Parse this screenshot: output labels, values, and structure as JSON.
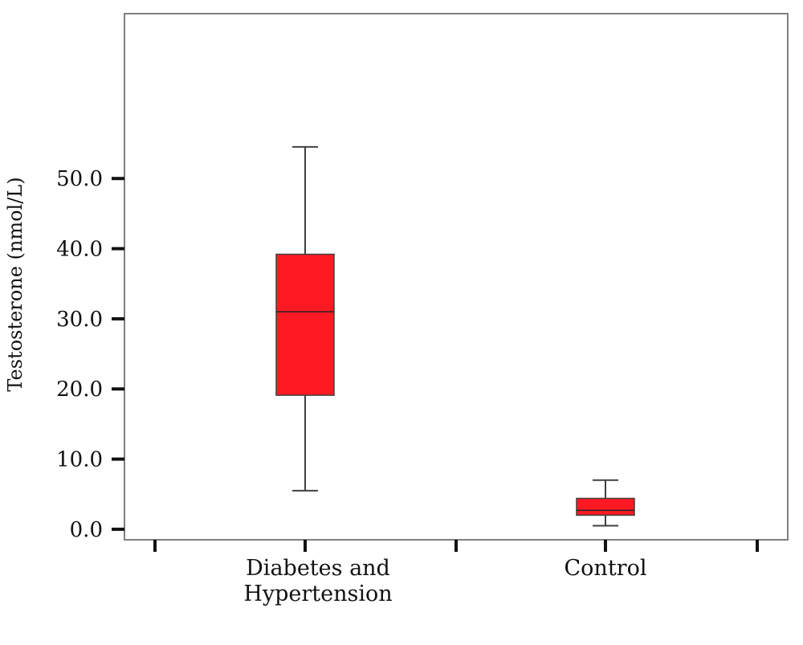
{
  "chart_data": {
    "type": "box",
    "ylabel": "Testosterone (nmol/L)",
    "ylim": [
      -1.5,
      73.5
    ],
    "yticks": [
      0,
      10,
      20,
      30,
      40,
      50
    ],
    "ytick_labels": [
      "0.0",
      "10.0",
      "20.0",
      "30.0",
      "40.0",
      "50.0"
    ],
    "grid": false,
    "categories": [
      {
        "lines": [
          "Diabetes and",
          "Hypertension"
        ]
      },
      {
        "lines": [
          "Control"
        ]
      }
    ],
    "boxes": [
      {
        "category": "Diabetes and Hypertension",
        "min": 5.5,
        "q1": 19.1,
        "median": 31.0,
        "q3": 39.2,
        "max": 54.5
      },
      {
        "category": "Control",
        "min": 0.5,
        "q1": 2.0,
        "median": 2.7,
        "q3": 4.4,
        "max": 7.0
      }
    ],
    "colors": {
      "box_fill": "#ff1a23",
      "box_stroke": "#404040",
      "whisker": "#404040",
      "frame": "#808080",
      "text": "#111111"
    }
  }
}
